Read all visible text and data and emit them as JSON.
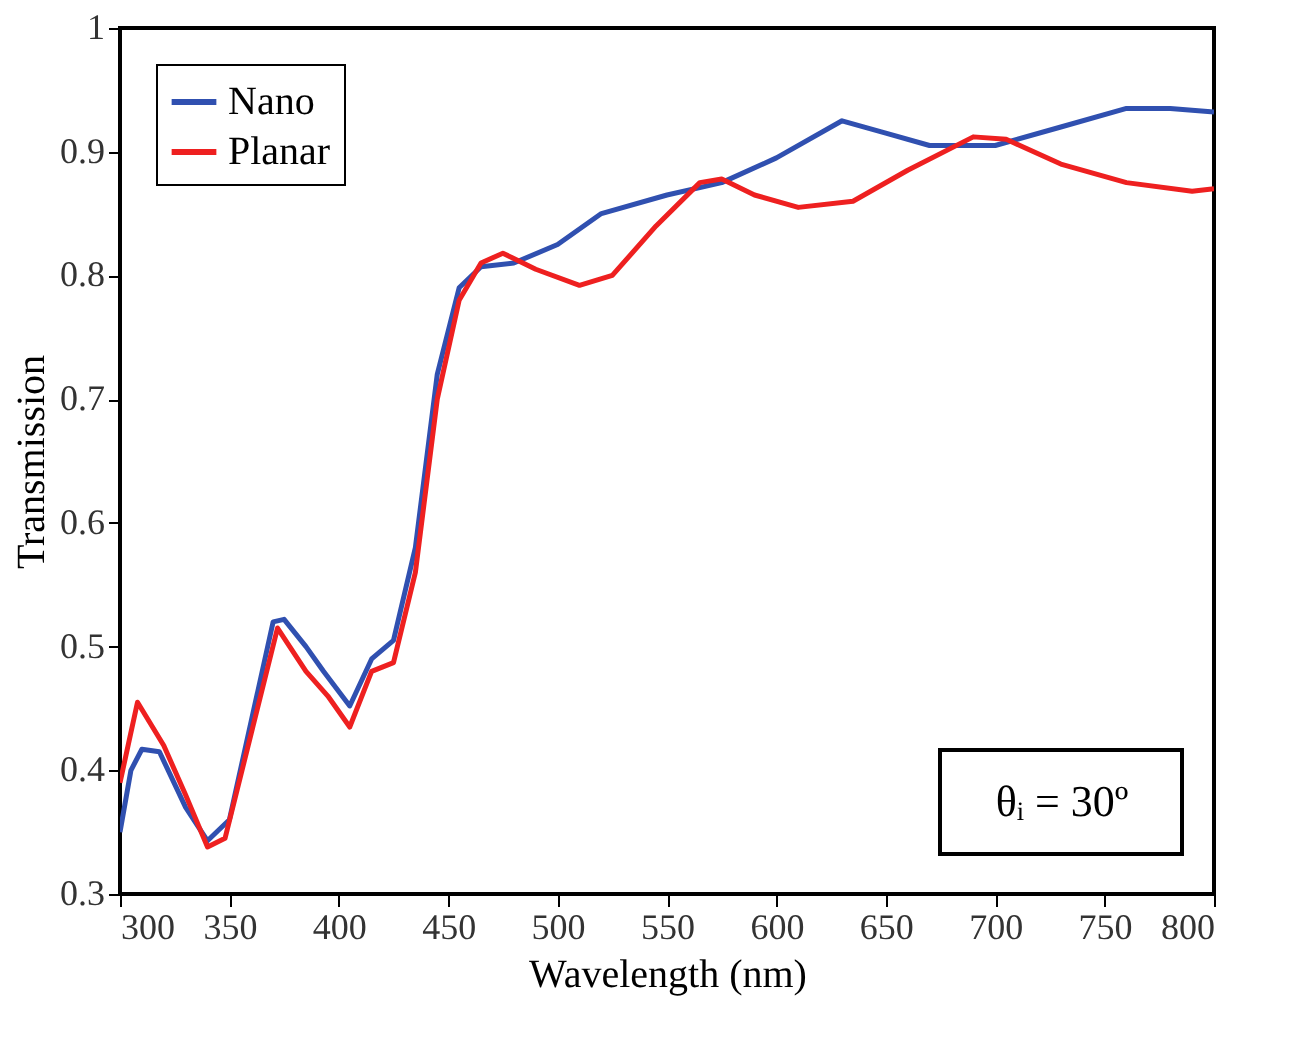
{
  "chart_data": {
    "type": "line",
    "xlabel": "Wavelength (nm)",
    "ylabel": "Transmission",
    "xlim": [
      300,
      800
    ],
    "xticks": [
      300,
      350,
      400,
      450,
      500,
      550,
      600,
      650,
      700,
      750,
      800
    ],
    "ylim": [
      0.3,
      1
    ],
    "yticks": [
      0.3,
      0.4,
      0.5,
      0.6,
      0.7,
      0.8,
      0.9,
      {
        "value": 1,
        "label": "1"
      }
    ],
    "grid": false,
    "legend": "top left",
    "line_style": "solid",
    "marker": "none",
    "annotations": [
      "θᵢ = 30º"
    ],
    "series": [
      {
        "name": "Nano",
        "color": "#3050b0",
        "x": [
          300,
          305,
          310,
          318,
          330,
          340,
          350,
          360,
          370,
          375,
          385,
          393,
          405,
          415,
          425,
          435,
          445,
          455,
          465,
          480,
          500,
          520,
          550,
          575,
          600,
          630,
          650,
          670,
          700,
          730,
          760,
          780,
          800
        ],
        "values": [
          0.35,
          0.4,
          0.417,
          0.415,
          0.37,
          0.343,
          0.36,
          0.44,
          0.52,
          0.522,
          0.5,
          0.48,
          0.452,
          0.49,
          0.505,
          0.58,
          0.72,
          0.79,
          0.807,
          0.81,
          0.825,
          0.85,
          0.865,
          0.875,
          0.895,
          0.925,
          0.915,
          0.905,
          0.905,
          0.92,
          0.935,
          0.935,
          0.932
        ]
      },
      {
        "name": "Planar",
        "color": "#ee2020",
        "x": [
          300,
          308,
          320,
          330,
          340,
          348,
          360,
          372,
          385,
          395,
          405,
          415,
          425,
          435,
          445,
          455,
          465,
          475,
          490,
          510,
          525,
          545,
          565,
          575,
          590,
          610,
          635,
          660,
          690,
          705,
          730,
          760,
          790,
          800
        ],
        "values": [
          0.39,
          0.455,
          0.42,
          0.38,
          0.338,
          0.345,
          0.43,
          0.515,
          0.48,
          0.46,
          0.435,
          0.48,
          0.487,
          0.56,
          0.7,
          0.78,
          0.81,
          0.818,
          0.805,
          0.792,
          0.8,
          0.84,
          0.875,
          0.878,
          0.865,
          0.855,
          0.86,
          0.885,
          0.912,
          0.91,
          0.89,
          0.875,
          0.868,
          0.87
        ]
      }
    ]
  }
}
